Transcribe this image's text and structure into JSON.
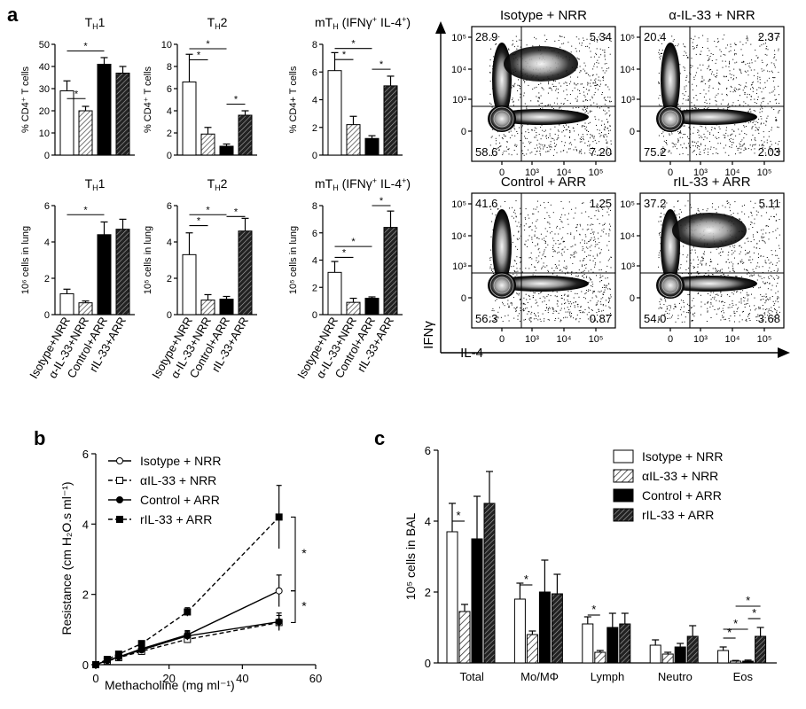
{
  "figure": {
    "panel_labels": [
      "a",
      "b",
      "c"
    ],
    "groups": [
      "Isotype+NRR",
      "α-IL-33+NRR",
      "Control+ARR",
      "rIL-33+ARR"
    ],
    "group_styles": [
      {
        "fill": "#ffffff",
        "pattern": "none"
      },
      {
        "fill": "#c8c8c8",
        "pattern": "hatch-light"
      },
      {
        "fill": "#000000",
        "pattern": "none"
      },
      {
        "fill": "#555555",
        "pattern": "hatch-dark"
      }
    ]
  },
  "chart_data": [
    {
      "id": "a_th1_pct",
      "type": "bar",
      "title": "TH1",
      "title_main": "T",
      "title_sub": "H",
      "title_tail": "1",
      "ylabel": "% CD4⁺ T cells",
      "ylim": [
        0,
        50
      ],
      "yticks": [
        "0",
        "10",
        "20",
        "30",
        "40",
        "50"
      ],
      "categories": [
        "Isotype+NRR",
        "α-IL-33+NRR",
        "Control+ARR",
        "rIL-33+ARR"
      ],
      "values": [
        29,
        20,
        41,
        37
      ],
      "errors": [
        4.5,
        2,
        3,
        3
      ],
      "significance": [
        {
          "from": 0,
          "to": 1,
          "label": "*",
          "y": 25.5
        },
        {
          "from": 0,
          "to": 2,
          "label": "*",
          "y": 47
        }
      ]
    },
    {
      "id": "a_th2_pct",
      "type": "bar",
      "title": "TH2",
      "title_main": "T",
      "title_sub": "H",
      "title_tail": "2",
      "ylabel": "% CD4⁺ T cells",
      "ylim": [
        0,
        10
      ],
      "yticks": [
        "0",
        "2",
        "4",
        "6",
        "8",
        "10"
      ],
      "categories": [
        "Isotype+NRR",
        "α-IL-33+NRR",
        "Control+ARR",
        "rIL-33+ARR"
      ],
      "values": [
        6.6,
        1.9,
        0.8,
        3.6
      ],
      "errors": [
        2.5,
        0.6,
        0.2,
        0.4
      ],
      "significance": [
        {
          "from": 0,
          "to": 1,
          "label": "*",
          "y": 8.6
        },
        {
          "from": 0,
          "to": 2,
          "label": "*",
          "y": 9.6
        },
        {
          "from": 2,
          "to": 3,
          "label": "*",
          "y": 4.6
        }
      ]
    },
    {
      "id": "a_mth_pct",
      "type": "bar",
      "title": "mTH (IFNγ+ IL-4+)",
      "title_main": "mT",
      "title_sub": "H",
      "title_tail": " (IFNγ",
      "title_sup1": "+",
      "title_tail2": " IL-4",
      "title_sup2": "+",
      "title_end": ")",
      "ylabel": "% CD4+ T cells",
      "ylim": [
        0,
        8
      ],
      "yticks": [
        "0",
        "2",
        "4",
        "6",
        "8"
      ],
      "categories": [
        "Isotype+NRR",
        "α-IL-33+NRR",
        "Control+ARR",
        "rIL-33+ARR"
      ],
      "values": [
        6.1,
        2.2,
        1.2,
        5.0
      ],
      "errors": [
        1.3,
        0.6,
        0.2,
        0.7
      ],
      "significance": [
        {
          "from": 0,
          "to": 1,
          "label": "*",
          "y": 6.9
        },
        {
          "from": 0,
          "to": 2,
          "label": "*",
          "y": 7.7
        },
        {
          "from": 2,
          "to": 3,
          "label": "*",
          "y": 6.2
        }
      ]
    },
    {
      "id": "a_th1_num",
      "type": "bar",
      "title": "TH1",
      "title_main": "T",
      "title_sub": "H",
      "title_tail": "1",
      "ylabel": "10⁶ cells in lung",
      "ylim": [
        0,
        6
      ],
      "yticks": [
        "0",
        "2",
        "4",
        "6"
      ],
      "categories": [
        "Isotype+NRR",
        "α-IL-33+NRR",
        "Control+ARR",
        "rIL-33+ARR"
      ],
      "values": [
        1.15,
        0.65,
        4.4,
        4.7
      ],
      "errors": [
        0.25,
        0.1,
        0.7,
        0.55
      ],
      "significance": [
        {
          "from": 0,
          "to": 2,
          "label": "*",
          "y": 5.5
        }
      ]
    },
    {
      "id": "a_th2_num",
      "type": "bar",
      "title": "TH2",
      "title_main": "T",
      "title_sub": "H",
      "title_tail": "2",
      "ylabel": "10⁵ cells in lung",
      "ylim": [
        0,
        6
      ],
      "yticks": [
        "0",
        "2",
        "4",
        "6"
      ],
      "categories": [
        "Isotype+NRR",
        "α-IL-33+NRR",
        "Control+ARR",
        "rIL-33+ARR"
      ],
      "values": [
        3.3,
        0.8,
        0.85,
        4.6
      ],
      "errors": [
        1.2,
        0.3,
        0.15,
        0.7
      ],
      "significance": [
        {
          "from": 0,
          "to": 1,
          "label": "*",
          "y": 4.9
        },
        {
          "from": 0,
          "to": 2,
          "label": "*",
          "y": 5.5
        },
        {
          "from": 2,
          "to": 3,
          "label": "*",
          "y": 5.4
        }
      ]
    },
    {
      "id": "a_mth_num",
      "type": "bar",
      "title": "mTH (IFNγ+ IL-4+)",
      "title_main": "mT",
      "title_sub": "H",
      "title_tail": " (IFNγ",
      "title_sup1": "+",
      "title_tail2": " IL-4",
      "title_sup2": "+",
      "title_end": ")",
      "ylabel": "10⁵ cells in lung",
      "ylim": [
        0,
        8
      ],
      "yticks": [
        "0",
        "2",
        "4",
        "6",
        "8"
      ],
      "categories": [
        "Isotype+NRR",
        "α-IL-33+NRR",
        "Control+ARR",
        "rIL-33+ARR"
      ],
      "values": [
        3.1,
        0.9,
        1.2,
        6.4
      ],
      "errors": [
        0.8,
        0.3,
        0.1,
        1.2
      ],
      "significance": [
        {
          "from": 0,
          "to": 1,
          "label": "*",
          "y": 4.2
        },
        {
          "from": 0,
          "to": 2,
          "label": "*",
          "y": 5.0
        },
        {
          "from": 2,
          "to": 3,
          "label": "*",
          "y": 8.0
        }
      ]
    },
    {
      "id": "a_flow",
      "type": "scatter",
      "subtype": "flow-cytometry-contour",
      "xlabel": "IL-4",
      "ylabel": "IFNγ",
      "xticks": [
        "0",
        "10³",
        "10⁴",
        "10⁵"
      ],
      "yticks": [
        "10⁵",
        "10⁴",
        "10³",
        "0"
      ],
      "plots": [
        {
          "title": "Isotype + NRR",
          "q_ul": "28.9",
          "q_ur": "5.34",
          "q_ll": "58.6",
          "q_lr": "7.20"
        },
        {
          "title": "α-IL-33 + NRR",
          "q_ul": "20.4",
          "q_ur": "2.37",
          "q_ll": "75.2",
          "q_lr": "2.03"
        },
        {
          "title": "Control + ARR",
          "q_ul": "41.6",
          "q_ur": "1.25",
          "q_ll": "56.3",
          "q_lr": "0.87"
        },
        {
          "title": "rIL-33 + ARR",
          "q_ul": "37.2",
          "q_ur": "5.11",
          "q_ll": "54.0",
          "q_lr": "3.68"
        }
      ]
    },
    {
      "id": "b",
      "type": "line",
      "xlabel": "Methacholine (mg ml⁻¹)",
      "ylabel": "Resistance (cm H₂O.s ml⁻¹)",
      "xlim": [
        0,
        60
      ],
      "ylim": [
        0,
        6
      ],
      "xticks": [
        "0",
        "20",
        "40",
        "60"
      ],
      "yticks": [
        "0",
        "2",
        "4",
        "6"
      ],
      "x": [
        0,
        3.125,
        6.25,
        12.5,
        25,
        50
      ],
      "series": [
        {
          "name": "Isotype + NRR",
          "values": [
            0,
            0.12,
            0.22,
            0.45,
            0.85,
            2.1
          ],
          "errors": [
            0,
            0.03,
            0.04,
            0.06,
            0.12,
            0.45
          ],
          "marker": "circle-open",
          "dash": "solid"
        },
        {
          "name": "αIL-33 + NRR",
          "values": [
            0,
            0.1,
            0.2,
            0.38,
            0.72,
            1.2
          ],
          "errors": [
            0,
            0.03,
            0.04,
            0.06,
            0.1,
            0.2
          ],
          "marker": "square-open",
          "dash": "dashed"
        },
        {
          "name": "Control + ARR",
          "values": [
            0,
            0.12,
            0.22,
            0.42,
            0.82,
            1.22
          ],
          "errors": [
            0,
            0.03,
            0.04,
            0.06,
            0.12,
            0.25
          ],
          "marker": "circle-filled",
          "dash": "solid"
        },
        {
          "name": "rIL-33 + ARR",
          "values": [
            0,
            0.15,
            0.3,
            0.6,
            1.5,
            4.2
          ],
          "errors": [
            0,
            0.03,
            0.05,
            0.08,
            0.12,
            0.9
          ],
          "marker": "square-filled",
          "dash": "dashed"
        }
      ],
      "significance": [
        {
          "label": "*",
          "y1": 4.2,
          "y2": 2.1
        },
        {
          "label": "*",
          "y1": 2.1,
          "y2": 1.2
        }
      ],
      "legend_placement": "top-left"
    },
    {
      "id": "c",
      "type": "bar",
      "ylabel": "10⁵ cells in BAL",
      "ylim": [
        0,
        6
      ],
      "yticks": [
        "0",
        "2",
        "4",
        "6"
      ],
      "categories": [
        "Total",
        "Mo/MΦ",
        "Lymph",
        "Neutro",
        "Eos"
      ],
      "series": [
        {
          "name": "Isotype + NRR",
          "values": [
            3.7,
            1.8,
            1.1,
            0.5,
            0.35
          ],
          "errors": [
            0.8,
            0.45,
            0.2,
            0.15,
            0.1
          ]
        },
        {
          "name": "αIL-33 + NRR",
          "values": [
            1.45,
            0.8,
            0.3,
            0.25,
            0.05
          ],
          "errors": [
            0.2,
            0.1,
            0.05,
            0.05,
            0.02
          ]
        },
        {
          "name": "Control + ARR",
          "values": [
            3.5,
            2.0,
            1.0,
            0.45,
            0.05
          ],
          "errors": [
            1.2,
            0.9,
            0.4,
            0.1,
            0.03
          ]
        },
        {
          "name": "rIL-33 + ARR",
          "values": [
            4.5,
            1.95,
            1.1,
            0.75,
            0.75
          ],
          "errors": [
            0.9,
            0.55,
            0.3,
            0.3,
            0.25
          ]
        }
      ],
      "significance": [
        {
          "category": 0,
          "from": 0,
          "to": 1,
          "label": "*",
          "y": 4.0
        },
        {
          "category": 1,
          "from": 0,
          "to": 1,
          "label": "*",
          "y": 2.2
        },
        {
          "category": 2,
          "from": 0,
          "to": 1,
          "label": "*",
          "y": 1.35
        },
        {
          "category": 4,
          "from": 0,
          "to": 1,
          "label": "*",
          "y": 0.7
        },
        {
          "category": 4,
          "from": 0,
          "to": 2,
          "label": "*",
          "y": 0.95
        },
        {
          "category": 4,
          "from": 1,
          "to": 3,
          "label": "*",
          "y": 1.6
        },
        {
          "category": 4,
          "from": 2,
          "to": 3,
          "label": "*",
          "y": 1.25
        }
      ],
      "legend_placement": "top-right"
    }
  ]
}
